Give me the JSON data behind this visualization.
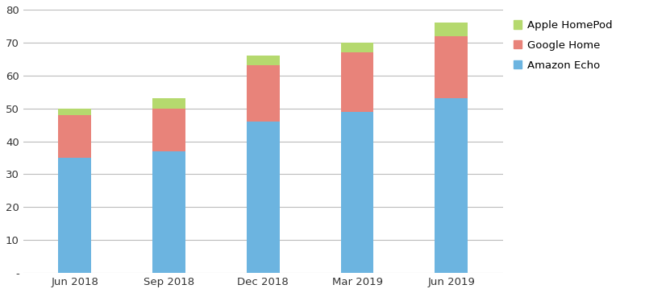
{
  "categories": [
    "Jun 2018",
    "Sep 2018",
    "Dec 2018",
    "Mar 2019",
    "Jun 2019"
  ],
  "amazon_echo": [
    35,
    37,
    46,
    49,
    53
  ],
  "google_home": [
    13,
    13,
    17,
    18,
    19
  ],
  "apple_homepod": [
    2,
    3,
    3,
    3,
    4
  ],
  "amazon_color": "#6cb4e0",
  "google_color": "#e8837a",
  "apple_color": "#b5d96e",
  "ylim": [
    0,
    80
  ],
  "yticks": [
    0,
    10,
    20,
    30,
    40,
    50,
    60,
    70,
    80
  ],
  "ytick_labels": [
    "-",
    "10",
    "20",
    "30",
    "40",
    "50",
    "60",
    "70",
    "80"
  ],
  "legend_labels": [
    "Apple HomePod",
    "Google Home",
    "Amazon Echo"
  ],
  "bar_width": 0.35,
  "background_color": "#ffffff",
  "grid_color": "#bbbbbb",
  "figsize": [
    8.0,
    3.64
  ],
  "dpi": 100
}
